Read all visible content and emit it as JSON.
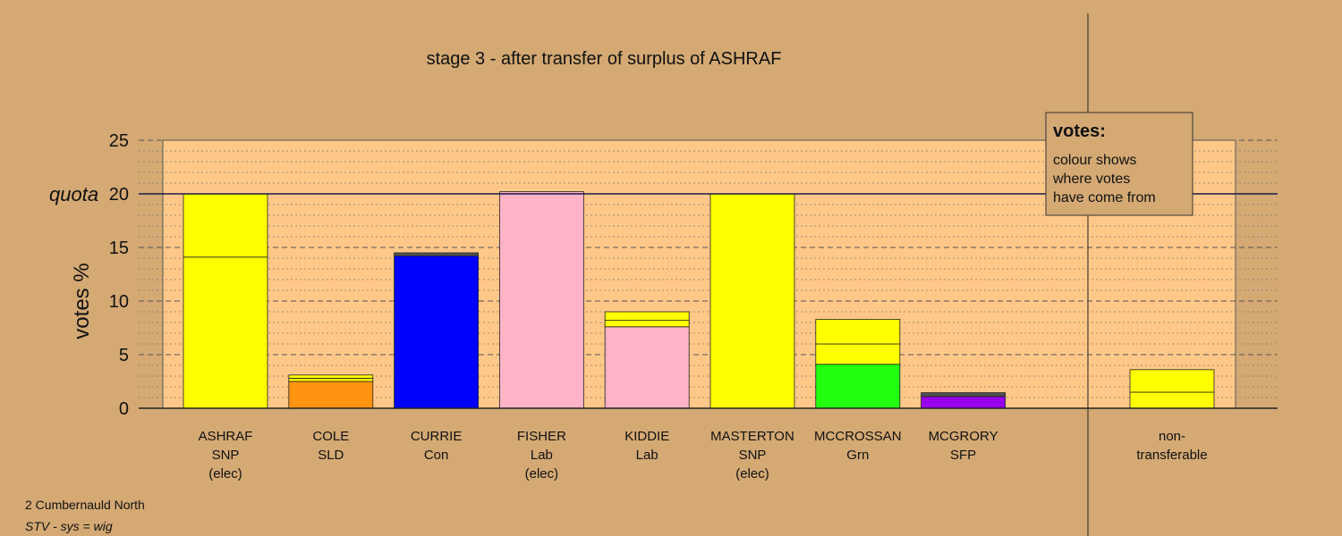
{
  "chart_data": {
    "type": "bar",
    "title": "stage 3 - after transfer of surplus of ASHRAF",
    "ylabel": "votes %",
    "ylim": [
      0,
      25
    ],
    "yticks": [
      0,
      5,
      10,
      15,
      20,
      25
    ],
    "quota": 20,
    "quota_label": "quota",
    "grid": "dashed horizontal lines every 1%, heavier every 5%",
    "categories": [
      {
        "lines": [
          "ASHRAF",
          "SNP",
          "(elec)"
        ],
        "segments": [
          {
            "value": 14.1,
            "color": "#ffff00"
          },
          {
            "value": 5.9,
            "color": "#ffff00"
          }
        ]
      },
      {
        "lines": [
          "COLE",
          "SLD"
        ],
        "segments": [
          {
            "value": 2.5,
            "color": "#ff9410"
          },
          {
            "value": 0.3,
            "color": "#ffff00"
          },
          {
            "value": 0.3,
            "color": "#ffff00"
          }
        ]
      },
      {
        "lines": [
          "CURRIE",
          "Con"
        ],
        "segments": [
          {
            "value": 14.2,
            "color": "#0000ff"
          },
          {
            "value": 0.3,
            "color": "#505050"
          }
        ]
      },
      {
        "lines": [
          "FISHER",
          "Lab",
          "(elec)"
        ],
        "segments": [
          {
            "value": 20.2,
            "color": "#ffb3c6"
          }
        ]
      },
      {
        "lines": [
          "KIDDIE",
          "Lab"
        ],
        "segments": [
          {
            "value": 7.6,
            "color": "#ffb3c6"
          },
          {
            "value": 0.6,
            "color": "#ffff00"
          },
          {
            "value": 0.8,
            "color": "#ffff00"
          }
        ]
      },
      {
        "lines": [
          "MASTERTON",
          "SNP",
          "(elec)"
        ],
        "segments": [
          {
            "value": 20.0,
            "color": "#ffff00"
          }
        ]
      },
      {
        "lines": [
          "MCCROSSAN",
          "Grn"
        ],
        "segments": [
          {
            "value": 4.1,
            "color": "#22ff11"
          },
          {
            "value": 1.9,
            "color": "#ffff00"
          },
          {
            "value": 2.3,
            "color": "#ffff00"
          }
        ]
      },
      {
        "lines": [
          "MCGRORY",
          "SFP"
        ],
        "segments": [
          {
            "value": 1.1,
            "color": "#9900ee"
          },
          {
            "value": 0.35,
            "color": "#505050"
          }
        ]
      }
    ],
    "nontransferable": {
      "lines": [
        "non-",
        "transferable"
      ],
      "segments": [
        {
          "value": 1.5,
          "color": "#ffff00"
        },
        {
          "value": 2.1,
          "color": "#ffff00"
        }
      ]
    }
  },
  "legend": {
    "title": "votes:",
    "lines": [
      "colour shows",
      "where votes",
      "have come from"
    ]
  },
  "footer": {
    "area": "2 Cumbernauld North",
    "system": "STV - sys = wig"
  },
  "colors": {
    "background": "#d4a974",
    "plot_area": "#ffc888",
    "quota_line": "#1a1a4a"
  }
}
